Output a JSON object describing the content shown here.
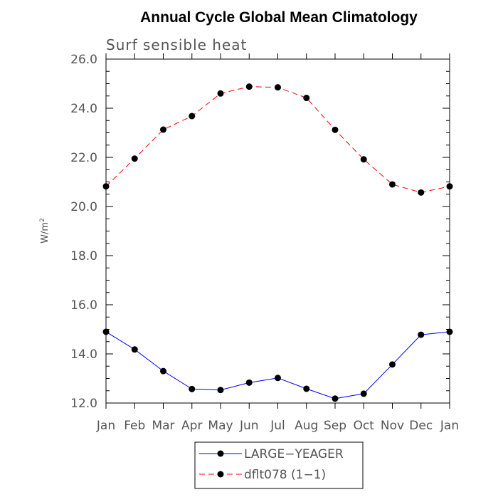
{
  "chart_data": {
    "type": "line",
    "title": "Annual Cycle Global Mean Climatology",
    "subtitle": "Surf sensible heat",
    "ylabel": "W/m",
    "ylabel_superscript": "2",
    "xlabel": "",
    "categories": [
      "Jan",
      "Feb",
      "Mar",
      "Apr",
      "May",
      "Jun",
      "Jul",
      "Aug",
      "Sep",
      "Oct",
      "Nov",
      "Dec",
      "Jan"
    ],
    "ylim": [
      12.0,
      26.0
    ],
    "yticks": [
      "12.0",
      "14.0",
      "16.0",
      "18.0",
      "20.0",
      "22.0",
      "24.0",
      "26.0"
    ],
    "grid": false,
    "legend_position": "bottom-center",
    "series": [
      {
        "name": "LARGE−YEAGER",
        "color": "#0000ff",
        "line_style": "solid",
        "marker": "filled-circle",
        "values": [
          14.9,
          14.18,
          13.3,
          12.57,
          12.53,
          12.83,
          13.02,
          12.58,
          12.18,
          12.38,
          13.57,
          14.78,
          14.9
        ]
      },
      {
        "name": "dflt078 (1−1)",
        "color": "#ff0000",
        "line_style": "dashed",
        "marker": "filled-circle",
        "values": [
          20.82,
          21.95,
          23.13,
          23.68,
          24.6,
          24.88,
          24.85,
          24.42,
          23.12,
          21.92,
          20.9,
          20.57,
          20.82
        ]
      }
    ]
  }
}
